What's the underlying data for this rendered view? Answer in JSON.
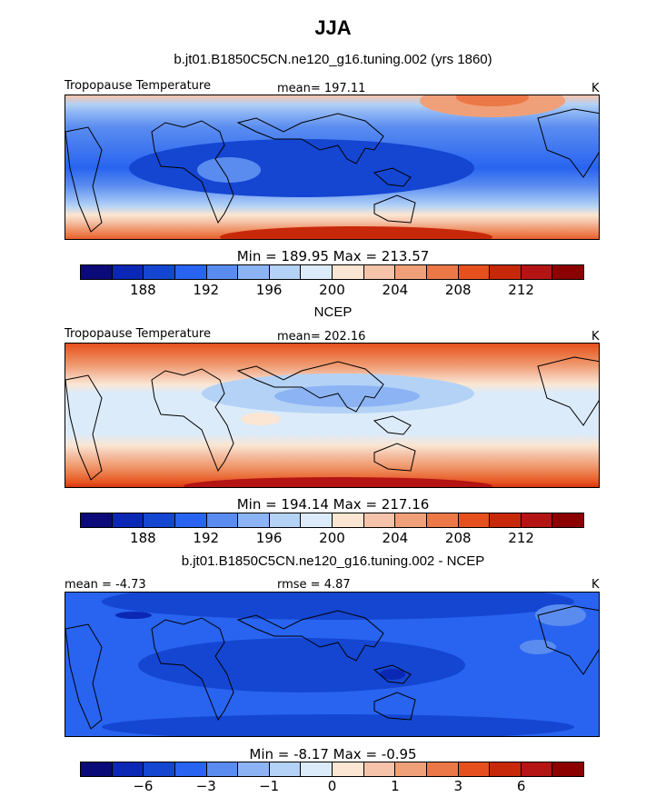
{
  "title": "JJA",
  "panels": [
    {
      "header": "b.jt01.B1850C5CN.ne120_g16.tuning.002 (yrs 1860)",
      "left_label": "Tropopause Temperature",
      "center_label": "mean= 197.11",
      "right_label": "K",
      "min_max": "Min = 189.95 Max = 213.57"
    },
    {
      "header": "NCEP",
      "left_label": "Tropopause Temperature",
      "center_label": "mean= 202.16",
      "right_label": "K",
      "min_max": "Min = 194.14 Max = 217.16"
    },
    {
      "header": "b.jt01.B1850C5CN.ne120_g16.tuning.002 - NCEP",
      "left_label": "mean =   -4.73",
      "center_label": "rmse =    4.87",
      "right_label": "K",
      "min_max": "Min =   -8.17 Max =   -0.95"
    }
  ],
  "colorbar_colors": [
    "#0a0a78",
    "#0a28b4",
    "#1446d2",
    "#2864f0",
    "#5a8cf0",
    "#8cb4f5",
    "#b4d2f5",
    "#dcebfa",
    "#fae6d2",
    "#f5c3aa",
    "#f0a078",
    "#eb7846",
    "#e6501e",
    "#c8280a",
    "#b41414",
    "#8c0000"
  ],
  "colorbar_ticks_temp": [
    "188",
    "192",
    "196",
    "200",
    "204",
    "208",
    "212"
  ],
  "colorbar_ticks_diff": [
    "−6",
    "−3",
    "−1",
    "0",
    "1",
    "3",
    "6"
  ]
}
